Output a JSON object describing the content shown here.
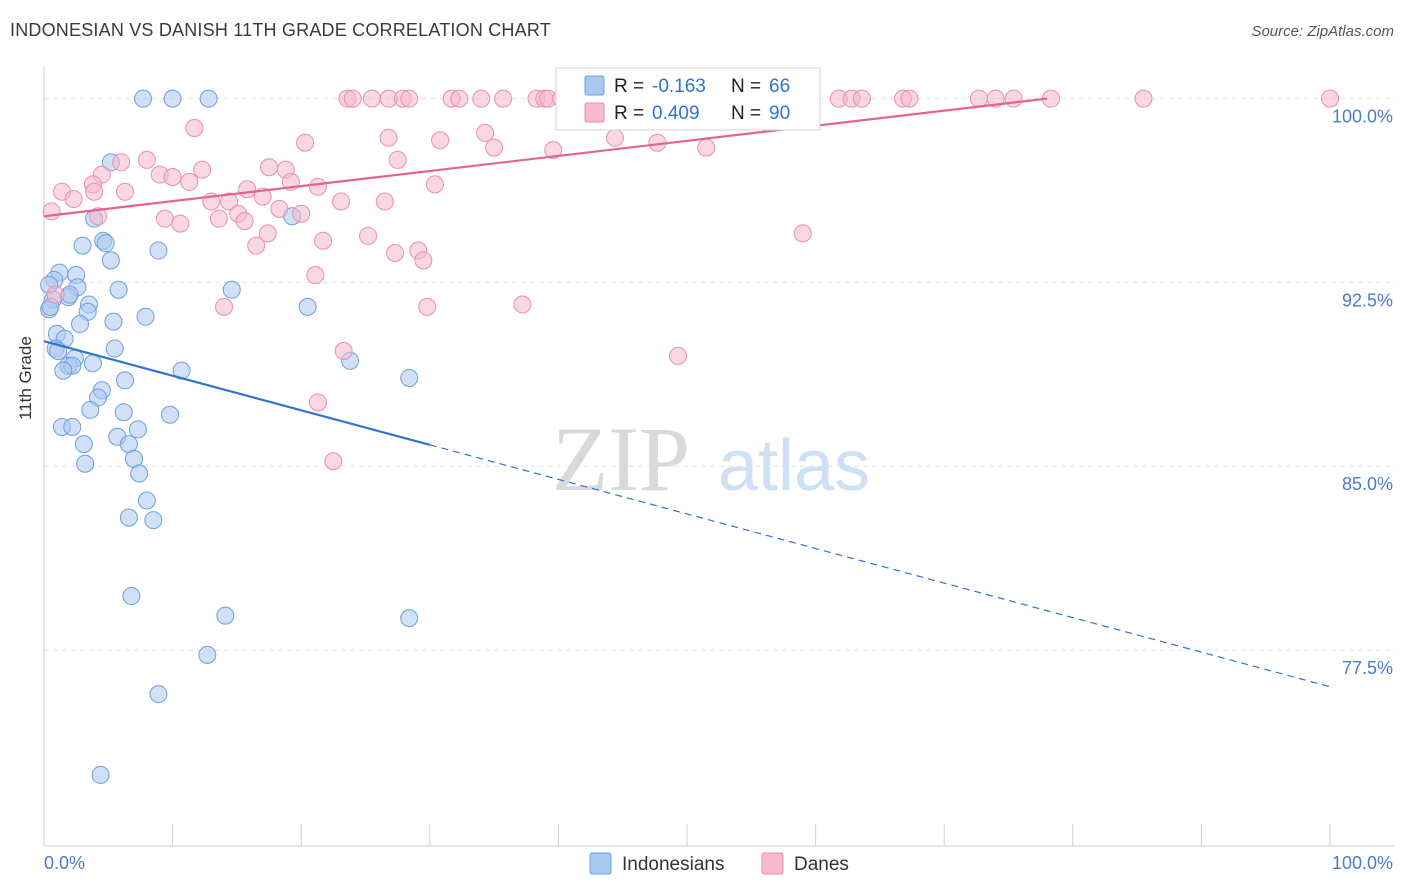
{
  "title": "INDONESIAN VS DANISH 11TH GRADE CORRELATION CHART",
  "source": "Source: ZipAtlas.com",
  "watermark": {
    "zip": "ZIP",
    "atlas": "atlas"
  },
  "colors": {
    "indonesians_fill": "#a9c8f0",
    "indonesians_stroke": "#6f9fdc",
    "indonesians_line": "#2f74d0",
    "danes_fill": "#f6b8cb",
    "danes_stroke": "#ea8fae",
    "danes_line": "#e8628f",
    "tick_text": "#4a7cc8",
    "grid": "#e3e3e3"
  },
  "legend_box": {
    "rows": [
      {
        "r_label": "R = ",
        "r_value": "-0.163",
        "n_label": "N = ",
        "n_value": "66",
        "series": "indonesians"
      },
      {
        "r_label": "R = ",
        "r_value": "0.409",
        "n_label": "N = ",
        "n_value": "90",
        "series": "danes"
      }
    ]
  },
  "bottom_legend": [
    {
      "label": "Indonesians",
      "series": "indonesians"
    },
    {
      "label": "Danes",
      "series": "danes"
    }
  ],
  "chart_data": {
    "type": "scatter",
    "title": "INDONESIAN VS DANISH 11TH GRADE CORRELATION CHART",
    "xlabel": "",
    "ylabel": "11th Grade",
    "xlim": [
      0,
      100
    ],
    "ylim": [
      69.5,
      100.8
    ],
    "x_tick_labels": [
      "0.0%",
      "100.0%"
    ],
    "y_ticks": [
      77.5,
      85.0,
      92.5,
      100.0
    ],
    "y_tick_labels": [
      "77.5%",
      "85.0%",
      "92.5%",
      "100.0%"
    ],
    "grid": "horizontal dashed",
    "legend_position": "top-center",
    "series": [
      {
        "name": "Indonesians",
        "r": -0.163,
        "n": 66,
        "trend": {
          "x0": 0,
          "y0": 90.1,
          "x1": 100,
          "y1": 76.0,
          "solid_until_x": 30
        },
        "points": [
          [
            7.7,
            100
          ],
          [
            10.0,
            100
          ],
          [
            12.8,
            100
          ],
          [
            5.2,
            97.4
          ],
          [
            3.9,
            95.1
          ],
          [
            4.6,
            94.2
          ],
          [
            4.8,
            94.1
          ],
          [
            3.0,
            94.0
          ],
          [
            8.9,
            93.8
          ],
          [
            5.2,
            93.4
          ],
          [
            1.2,
            92.9
          ],
          [
            2.5,
            92.8
          ],
          [
            0.8,
            92.6
          ],
          [
            0.4,
            92.4
          ],
          [
            2.6,
            92.3
          ],
          [
            5.8,
            92.2
          ],
          [
            14.6,
            92.2
          ],
          [
            1.9,
            91.9
          ],
          [
            0.7,
            91.8
          ],
          [
            3.5,
            91.6
          ],
          [
            20.5,
            91.5
          ],
          [
            0.4,
            91.4
          ],
          [
            3.4,
            91.3
          ],
          [
            7.9,
            91.1
          ],
          [
            5.4,
            90.9
          ],
          [
            2.8,
            90.8
          ],
          [
            19.3,
            95.2
          ],
          [
            1.0,
            90.4
          ],
          [
            1.6,
            90.2
          ],
          [
            0.9,
            89.8
          ],
          [
            5.5,
            89.8
          ],
          [
            2.4,
            89.4
          ],
          [
            3.8,
            89.2
          ],
          [
            1.9,
            89.1
          ],
          [
            2.2,
            89.1
          ],
          [
            23.8,
            89.3
          ],
          [
            1.5,
            88.9
          ],
          [
            10.7,
            88.9
          ],
          [
            28.4,
            88.6
          ],
          [
            6.3,
            88.5
          ],
          [
            4.5,
            88.1
          ],
          [
            4.2,
            87.8
          ],
          [
            3.6,
            87.3
          ],
          [
            6.2,
            87.2
          ],
          [
            9.8,
            87.1
          ],
          [
            1.4,
            86.6
          ],
          [
            2.2,
            86.6
          ],
          [
            7.3,
            86.5
          ],
          [
            5.7,
            86.2
          ],
          [
            3.1,
            85.9
          ],
          [
            6.6,
            85.9
          ],
          [
            7.0,
            85.3
          ],
          [
            3.2,
            85.1
          ],
          [
            7.4,
            84.7
          ],
          [
            8.0,
            83.6
          ],
          [
            6.6,
            82.9
          ],
          [
            8.5,
            82.8
          ],
          [
            6.8,
            79.7
          ],
          [
            14.1,
            78.9
          ],
          [
            28.4,
            78.8
          ],
          [
            12.7,
            77.3
          ],
          [
            8.9,
            75.7
          ],
          [
            4.4,
            72.4
          ],
          [
            0.5,
            91.5
          ],
          [
            2.0,
            92.0
          ],
          [
            1.1,
            89.7
          ]
        ]
      },
      {
        "name": "Danes",
        "r": 0.409,
        "n": 90,
        "trend": {
          "x0": 0,
          "y0": 95.2,
          "x1": 78,
          "y1": 100.0,
          "solid_until_x": 78
        },
        "points": [
          [
            23.6,
            100
          ],
          [
            24.0,
            100
          ],
          [
            25.5,
            100
          ],
          [
            26.8,
            100
          ],
          [
            27.9,
            100
          ],
          [
            28.4,
            100
          ],
          [
            31.7,
            100
          ],
          [
            32.3,
            100
          ],
          [
            34.0,
            100
          ],
          [
            35.7,
            100
          ],
          [
            38.3,
            100
          ],
          [
            38.9,
            100
          ],
          [
            39.2,
            100
          ],
          [
            40.2,
            100
          ],
          [
            41.5,
            100
          ],
          [
            43.8,
            100
          ],
          [
            44.4,
            100
          ],
          [
            47.9,
            100
          ],
          [
            49.0,
            100
          ],
          [
            61.8,
            100
          ],
          [
            62.8,
            100
          ],
          [
            63.6,
            100
          ],
          [
            66.8,
            100
          ],
          [
            67.3,
            100
          ],
          [
            72.7,
            100
          ],
          [
            74.0,
            100
          ],
          [
            75.4,
            100
          ],
          [
            78.3,
            100
          ],
          [
            85.5,
            100
          ],
          [
            100.0,
            100
          ],
          [
            11.7,
            98.8
          ],
          [
            34.3,
            98.6
          ],
          [
            26.8,
            98.4
          ],
          [
            44.4,
            98.4
          ],
          [
            47.7,
            98.2
          ],
          [
            51.5,
            98.0
          ],
          [
            20.3,
            98.2
          ],
          [
            30.8,
            98.3
          ],
          [
            35.0,
            98.0
          ],
          [
            39.6,
            97.9
          ],
          [
            30.4,
            96.5
          ],
          [
            27.5,
            97.5
          ],
          [
            8.0,
            97.5
          ],
          [
            12.3,
            97.1
          ],
          [
            18.8,
            97.1
          ],
          [
            9.0,
            96.9
          ],
          [
            17.5,
            97.2
          ],
          [
            10.0,
            96.8
          ],
          [
            6.0,
            97.4
          ],
          [
            4.5,
            96.9
          ],
          [
            3.8,
            96.5
          ],
          [
            11.3,
            96.6
          ],
          [
            19.2,
            96.6
          ],
          [
            21.3,
            96.4
          ],
          [
            15.8,
            96.3
          ],
          [
            17.0,
            96.0
          ],
          [
            3.9,
            96.2
          ],
          [
            1.4,
            96.2
          ],
          [
            2.3,
            95.9
          ],
          [
            6.3,
            96.2
          ],
          [
            13.0,
            95.8
          ],
          [
            14.4,
            95.8
          ],
          [
            15.1,
            95.3
          ],
          [
            18.3,
            95.5
          ],
          [
            23.1,
            95.8
          ],
          [
            26.5,
            95.8
          ],
          [
            20.0,
            95.3
          ],
          [
            9.4,
            95.1
          ],
          [
            10.6,
            94.9
          ],
          [
            13.6,
            95.1
          ],
          [
            15.6,
            95.0
          ],
          [
            0.6,
            95.4
          ],
          [
            4.2,
            95.2
          ],
          [
            17.4,
            94.5
          ],
          [
            21.7,
            94.2
          ],
          [
            25.2,
            94.4
          ],
          [
            16.5,
            94.0
          ],
          [
            27.3,
            93.7
          ],
          [
            29.1,
            93.8
          ],
          [
            29.5,
            93.4
          ],
          [
            59.0,
            94.5
          ],
          [
            21.1,
            92.8
          ],
          [
            14.0,
            91.5
          ],
          [
            29.8,
            91.5
          ],
          [
            37.2,
            91.6
          ],
          [
            23.3,
            89.7
          ],
          [
            49.3,
            89.5
          ],
          [
            21.3,
            87.6
          ],
          [
            22.5,
            85.2
          ],
          [
            0.9,
            92.0
          ]
        ]
      }
    ]
  }
}
